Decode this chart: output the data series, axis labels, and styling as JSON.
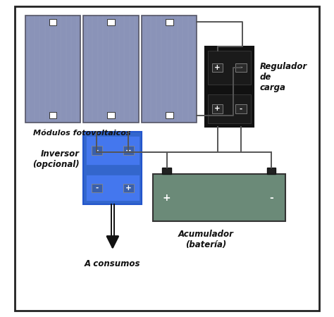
{
  "bg_color": "#ffffff",
  "border_color": "#222222",
  "panel_color": "#8a93b8",
  "panel_border": "#555566",
  "panel_line_color": "#9aa0c0",
  "regulator_color": "#111111",
  "inversor_color": "#3366cc",
  "inversor_inner": "#4477ee",
  "battery_color": "#6b8a78",
  "battery_border": "#333333",
  "wire_color": "#555555",
  "terminal_white": "#ffffff",
  "terminal_border": "#333333",
  "label_modulos": "Módulos fotovoltaicos",
  "label_regulador": "Regulador\nde\ncarga",
  "label_inversor": "Inversor\n(opcional)",
  "label_acumulador": "Acumulador\n(batería)",
  "label_consumos": "A consumos",
  "figsize": [
    4.74,
    4.5
  ],
  "dpi": 100
}
